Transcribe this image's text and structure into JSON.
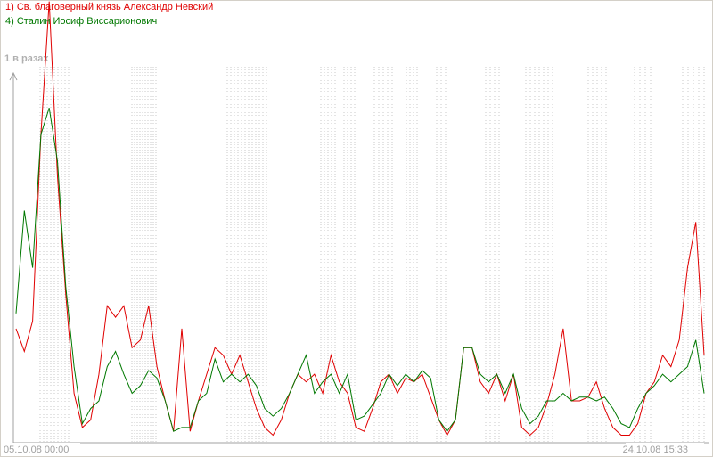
{
  "chart_data": {
    "type": "line",
    "y_label": "1 в разах",
    "categories": [
      "05.10.08 00:00",
      null,
      null,
      null,
      null,
      null,
      null,
      null,
      null,
      null,
      null,
      null,
      null,
      null,
      null,
      null,
      null,
      null,
      null,
      null,
      null,
      null,
      null,
      null,
      null,
      null,
      null,
      null,
      null,
      null,
      null,
      null,
      null,
      null,
      null,
      null,
      null,
      null,
      null,
      null,
      null,
      null,
      null,
      null,
      null,
      null,
      null,
      null,
      null,
      null,
      null,
      null,
      null,
      null,
      null,
      null,
      null,
      null,
      null,
      null,
      null,
      null,
      null,
      null,
      null,
      null,
      null,
      null,
      null,
      null,
      null,
      null,
      null,
      null,
      null,
      null,
      null,
      null,
      null,
      null,
      null,
      null,
      null,
      "24.10.08 15:33"
    ],
    "series": [
      {
        "name": "1) Св. благоверный князь Александр Невский",
        "color": "#e00000",
        "values": [
          30,
          24,
          32,
          81,
          116,
          70,
          39,
          13,
          4,
          6,
          18,
          36,
          33,
          36,
          25,
          27,
          36,
          20,
          11,
          3,
          30,
          3,
          11,
          18,
          25,
          23,
          18,
          23,
          16,
          9,
          4,
          2,
          6,
          13,
          18,
          16,
          18,
          13,
          23,
          16,
          13,
          4,
          3,
          9,
          16,
          18,
          13,
          17,
          16,
          18,
          12,
          6,
          2,
          6,
          25,
          25,
          16,
          13,
          18,
          11,
          18,
          4,
          2,
          4,
          10,
          18,
          30,
          11,
          11,
          12,
          16,
          9,
          4,
          2,
          2,
          5,
          13,
          16,
          23,
          20,
          27,
          46,
          58,
          23
        ]
      },
      {
        "name": "4) Сталин Иосиф Виссарионович",
        "color": "#007800",
        "values": [
          34,
          61,
          46,
          81,
          88,
          74,
          41,
          20,
          5,
          9,
          11,
          20,
          24,
          18,
          13,
          15,
          19,
          17,
          11,
          3,
          4,
          4,
          11,
          13,
          22,
          16,
          18,
          16,
          18,
          15,
          9,
          7,
          9,
          13,
          18,
          23,
          13,
          16,
          18,
          13,
          18,
          6,
          7,
          10,
          13,
          18,
          15,
          18,
          16,
          19,
          17,
          6,
          3,
          6,
          25,
          25,
          18,
          16,
          18,
          13,
          18,
          9,
          5,
          7,
          11,
          11,
          13,
          11,
          12,
          12,
          11,
          12,
          9,
          5,
          4,
          9,
          13,
          15,
          18,
          16,
          18,
          20,
          27,
          13
        ]
      }
    ],
    "ylim": [
      0,
      100
    ]
  }
}
